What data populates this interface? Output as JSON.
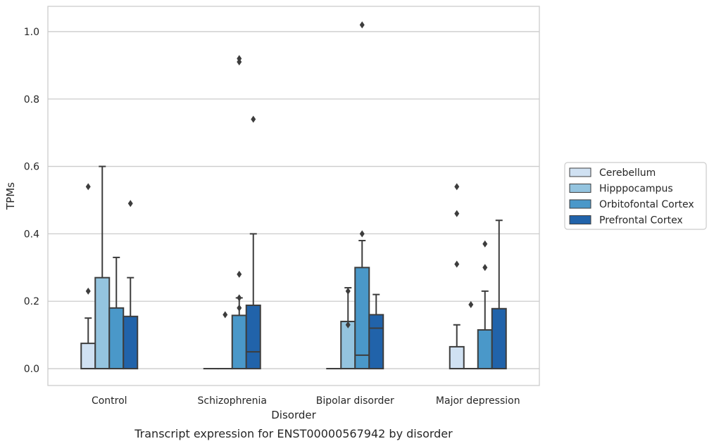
{
  "caption": "Transcript expression for ENST00000567942 by disorder",
  "chart_data": {
    "type": "box",
    "title": "",
    "xlabel": "Disorder",
    "ylabel": "TPMs",
    "categories": [
      "Control",
      "Schizophrenia",
      "Bipolar disorder",
      "Major depression"
    ],
    "ylim": [
      -0.05,
      1.075
    ],
    "yticks": [
      0.0,
      0.2,
      0.4,
      0.6,
      0.8,
      1.0
    ],
    "ytick_labels": [
      "0.0",
      "0.2",
      "0.4",
      "0.6",
      "0.8",
      "1.0"
    ],
    "grid": "horizontal",
    "legend_position": "right",
    "series": [
      {
        "name": "Cerebellum",
        "color": "#d0e1f2",
        "boxes": [
          {
            "whislo": 0.0,
            "q1": 0.0,
            "med": 0.0,
            "q3": 0.075,
            "whishi": 0.15,
            "fliers": [
              0.23,
              0.54
            ]
          },
          {
            "whislo": 0.0,
            "q1": 0.0,
            "med": 0.0,
            "q3": 0.0,
            "whishi": 0.0,
            "fliers": []
          },
          {
            "whislo": 0.0,
            "q1": 0.0,
            "med": 0.0,
            "q3": 0.0,
            "whishi": 0.0,
            "fliers": []
          },
          {
            "whislo": 0.0,
            "q1": 0.0,
            "med": 0.0,
            "q3": 0.065,
            "whishi": 0.13,
            "fliers": [
              0.31,
              0.46,
              0.54
            ]
          }
        ]
      },
      {
        "name": "Hipppocampus",
        "color": "#94c4df",
        "boxes": [
          {
            "whislo": 0.0,
            "q1": 0.0,
            "med": 0.0,
            "q3": 0.27,
            "whishi": 0.6,
            "fliers": []
          },
          {
            "whislo": 0.0,
            "q1": 0.0,
            "med": 0.0,
            "q3": 0.0,
            "whishi": 0.0,
            "fliers": [
              0.16
            ]
          },
          {
            "whislo": 0.0,
            "q1": 0.0,
            "med": 0.0,
            "q3": 0.14,
            "whishi": 0.24,
            "fliers": [
              0.13,
              0.23
            ]
          },
          {
            "whislo": 0.0,
            "q1": 0.0,
            "med": 0.0,
            "q3": 0.0,
            "whishi": 0.0,
            "fliers": [
              0.19
            ]
          }
        ]
      },
      {
        "name": "Orbitofontal Cortex",
        "color": "#4a98c9",
        "boxes": [
          {
            "whislo": 0.0,
            "q1": 0.0,
            "med": 0.0,
            "q3": 0.18,
            "whishi": 0.33,
            "fliers": []
          },
          {
            "whislo": 0.0,
            "q1": 0.0,
            "med": 0.0,
            "q3": 0.158,
            "whishi": 0.21,
            "fliers": [
              0.18,
              0.21,
              0.28,
              0.91,
              0.92
            ]
          },
          {
            "whislo": 0.0,
            "q1": 0.0,
            "med": 0.04,
            "q3": 0.3,
            "whishi": 0.38,
            "fliers": [
              0.4,
              1.02
            ]
          },
          {
            "whislo": 0.0,
            "q1": 0.0,
            "med": 0.0,
            "q3": 0.115,
            "whishi": 0.23,
            "fliers": [
              0.3,
              0.37
            ]
          }
        ]
      },
      {
        "name": "Prefrontal Cortex",
        "color": "#2163aa",
        "boxes": [
          {
            "whislo": 0.0,
            "q1": 0.0,
            "med": 0.0,
            "q3": 0.155,
            "whishi": 0.27,
            "fliers": [
              0.49
            ]
          },
          {
            "whislo": 0.0,
            "q1": 0.0,
            "med": 0.05,
            "q3": 0.188,
            "whishi": 0.4,
            "fliers": [
              0.74
            ]
          },
          {
            "whislo": 0.0,
            "q1": 0.0,
            "med": 0.12,
            "q3": 0.16,
            "whishi": 0.22,
            "fliers": []
          },
          {
            "whislo": 0.0,
            "q1": 0.0,
            "med": 0.0,
            "q3": 0.178,
            "whishi": 0.44,
            "fliers": []
          }
        ]
      }
    ]
  }
}
